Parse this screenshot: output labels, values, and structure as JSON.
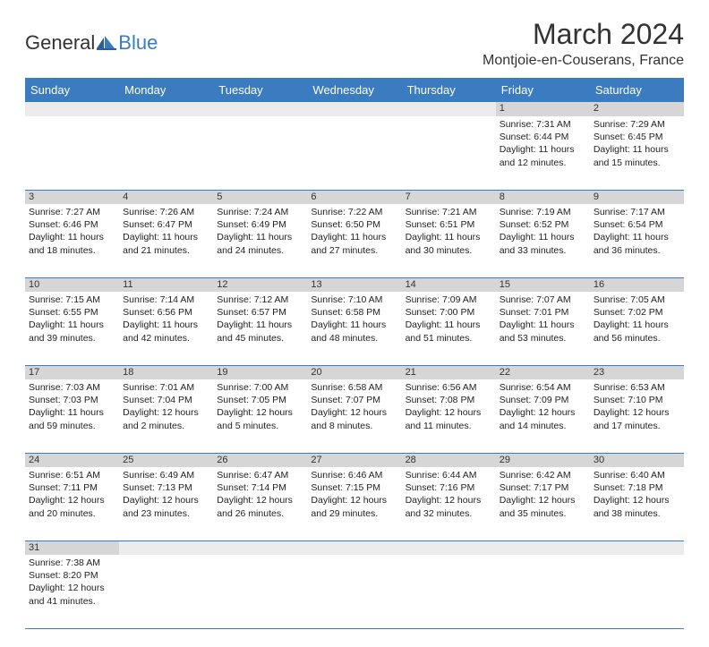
{
  "logo": {
    "part1": "General",
    "part2": "Blue"
  },
  "title": "March 2024",
  "location": "Montjoie-en-Couserans, France",
  "colors": {
    "header_bg": "#3b7bbf",
    "header_fg": "#ffffff",
    "daynum_bg": "#d6d6d6",
    "border": "#3b7bbf",
    "logo_blue": "#3b7bbf",
    "text": "#333333"
  },
  "day_headers": [
    "Sunday",
    "Monday",
    "Tuesday",
    "Wednesday",
    "Thursday",
    "Friday",
    "Saturday"
  ],
  "weeks": [
    [
      null,
      null,
      null,
      null,
      null,
      {
        "n": "1",
        "sunrise": "Sunrise: 7:31 AM",
        "sunset": "Sunset: 6:44 PM",
        "daylight": "Daylight: 11 hours and 12 minutes."
      },
      {
        "n": "2",
        "sunrise": "Sunrise: 7:29 AM",
        "sunset": "Sunset: 6:45 PM",
        "daylight": "Daylight: 11 hours and 15 minutes."
      }
    ],
    [
      {
        "n": "3",
        "sunrise": "Sunrise: 7:27 AM",
        "sunset": "Sunset: 6:46 PM",
        "daylight": "Daylight: 11 hours and 18 minutes."
      },
      {
        "n": "4",
        "sunrise": "Sunrise: 7:26 AM",
        "sunset": "Sunset: 6:47 PM",
        "daylight": "Daylight: 11 hours and 21 minutes."
      },
      {
        "n": "5",
        "sunrise": "Sunrise: 7:24 AM",
        "sunset": "Sunset: 6:49 PM",
        "daylight": "Daylight: 11 hours and 24 minutes."
      },
      {
        "n": "6",
        "sunrise": "Sunrise: 7:22 AM",
        "sunset": "Sunset: 6:50 PM",
        "daylight": "Daylight: 11 hours and 27 minutes."
      },
      {
        "n": "7",
        "sunrise": "Sunrise: 7:21 AM",
        "sunset": "Sunset: 6:51 PM",
        "daylight": "Daylight: 11 hours and 30 minutes."
      },
      {
        "n": "8",
        "sunrise": "Sunrise: 7:19 AM",
        "sunset": "Sunset: 6:52 PM",
        "daylight": "Daylight: 11 hours and 33 minutes."
      },
      {
        "n": "9",
        "sunrise": "Sunrise: 7:17 AM",
        "sunset": "Sunset: 6:54 PM",
        "daylight": "Daylight: 11 hours and 36 minutes."
      }
    ],
    [
      {
        "n": "10",
        "sunrise": "Sunrise: 7:15 AM",
        "sunset": "Sunset: 6:55 PM",
        "daylight": "Daylight: 11 hours and 39 minutes."
      },
      {
        "n": "11",
        "sunrise": "Sunrise: 7:14 AM",
        "sunset": "Sunset: 6:56 PM",
        "daylight": "Daylight: 11 hours and 42 minutes."
      },
      {
        "n": "12",
        "sunrise": "Sunrise: 7:12 AM",
        "sunset": "Sunset: 6:57 PM",
        "daylight": "Daylight: 11 hours and 45 minutes."
      },
      {
        "n": "13",
        "sunrise": "Sunrise: 7:10 AM",
        "sunset": "Sunset: 6:58 PM",
        "daylight": "Daylight: 11 hours and 48 minutes."
      },
      {
        "n": "14",
        "sunrise": "Sunrise: 7:09 AM",
        "sunset": "Sunset: 7:00 PM",
        "daylight": "Daylight: 11 hours and 51 minutes."
      },
      {
        "n": "15",
        "sunrise": "Sunrise: 7:07 AM",
        "sunset": "Sunset: 7:01 PM",
        "daylight": "Daylight: 11 hours and 53 minutes."
      },
      {
        "n": "16",
        "sunrise": "Sunrise: 7:05 AM",
        "sunset": "Sunset: 7:02 PM",
        "daylight": "Daylight: 11 hours and 56 minutes."
      }
    ],
    [
      {
        "n": "17",
        "sunrise": "Sunrise: 7:03 AM",
        "sunset": "Sunset: 7:03 PM",
        "daylight": "Daylight: 11 hours and 59 minutes."
      },
      {
        "n": "18",
        "sunrise": "Sunrise: 7:01 AM",
        "sunset": "Sunset: 7:04 PM",
        "daylight": "Daylight: 12 hours and 2 minutes."
      },
      {
        "n": "19",
        "sunrise": "Sunrise: 7:00 AM",
        "sunset": "Sunset: 7:05 PM",
        "daylight": "Daylight: 12 hours and 5 minutes."
      },
      {
        "n": "20",
        "sunrise": "Sunrise: 6:58 AM",
        "sunset": "Sunset: 7:07 PM",
        "daylight": "Daylight: 12 hours and 8 minutes."
      },
      {
        "n": "21",
        "sunrise": "Sunrise: 6:56 AM",
        "sunset": "Sunset: 7:08 PM",
        "daylight": "Daylight: 12 hours and 11 minutes."
      },
      {
        "n": "22",
        "sunrise": "Sunrise: 6:54 AM",
        "sunset": "Sunset: 7:09 PM",
        "daylight": "Daylight: 12 hours and 14 minutes."
      },
      {
        "n": "23",
        "sunrise": "Sunrise: 6:53 AM",
        "sunset": "Sunset: 7:10 PM",
        "daylight": "Daylight: 12 hours and 17 minutes."
      }
    ],
    [
      {
        "n": "24",
        "sunrise": "Sunrise: 6:51 AM",
        "sunset": "Sunset: 7:11 PM",
        "daylight": "Daylight: 12 hours and 20 minutes."
      },
      {
        "n": "25",
        "sunrise": "Sunrise: 6:49 AM",
        "sunset": "Sunset: 7:13 PM",
        "daylight": "Daylight: 12 hours and 23 minutes."
      },
      {
        "n": "26",
        "sunrise": "Sunrise: 6:47 AM",
        "sunset": "Sunset: 7:14 PM",
        "daylight": "Daylight: 12 hours and 26 minutes."
      },
      {
        "n": "27",
        "sunrise": "Sunrise: 6:46 AM",
        "sunset": "Sunset: 7:15 PM",
        "daylight": "Daylight: 12 hours and 29 minutes."
      },
      {
        "n": "28",
        "sunrise": "Sunrise: 6:44 AM",
        "sunset": "Sunset: 7:16 PM",
        "daylight": "Daylight: 12 hours and 32 minutes."
      },
      {
        "n": "29",
        "sunrise": "Sunrise: 6:42 AM",
        "sunset": "Sunset: 7:17 PM",
        "daylight": "Daylight: 12 hours and 35 minutes."
      },
      {
        "n": "30",
        "sunrise": "Sunrise: 6:40 AM",
        "sunset": "Sunset: 7:18 PM",
        "daylight": "Daylight: 12 hours and 38 minutes."
      }
    ],
    [
      {
        "n": "31",
        "sunrise": "Sunrise: 7:38 AM",
        "sunset": "Sunset: 8:20 PM",
        "daylight": "Daylight: 12 hours and 41 minutes."
      },
      null,
      null,
      null,
      null,
      null,
      null
    ]
  ]
}
